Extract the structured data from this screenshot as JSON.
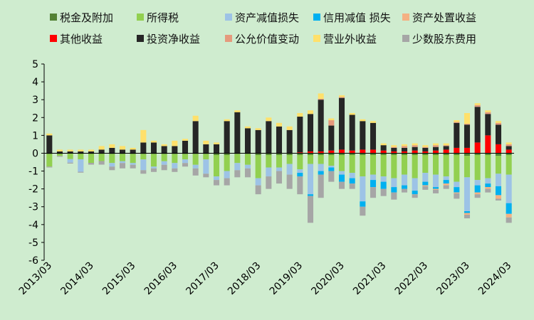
{
  "chart_data": {
    "type": "bar",
    "stacked": true,
    "ylim": [
      -6,
      5
    ],
    "yticks": [
      -6,
      -5,
      -4,
      -3,
      -2,
      -1,
      0,
      1,
      2,
      3,
      4,
      5
    ],
    "xtick_labels": [
      "2013/03",
      "2014/03",
      "2015/03",
      "2016/03",
      "2017/03",
      "2018/03",
      "2019/03",
      "2020/03",
      "2021/03",
      "2022/03",
      "2023/03",
      "2024/03"
    ],
    "xtick_positions": [
      0,
      4,
      8,
      12,
      16,
      20,
      24,
      28,
      32,
      36,
      40,
      44
    ],
    "grid": false,
    "legend_position": "top",
    "x_count": 45,
    "series": [
      {
        "name": "税金及附加",
        "color": "#548235",
        "values": [
          -0.05,
          -0.05,
          -0.03,
          -0.04,
          -0.04,
          -0.04,
          -0.05,
          -0.05,
          -0.05,
          -0.05,
          -0.05,
          -0.05,
          -0.05,
          -0.05,
          -0.05,
          -0.05,
          -0.1,
          -0.1,
          -0.05,
          -0.05,
          -0.1,
          -0.1,
          -0.1,
          -0.1,
          -0.1,
          -0.1,
          -0.1,
          -0.1,
          -0.1,
          -0.1,
          -0.1,
          -0.1,
          -0.1,
          -0.1,
          -0.1,
          -0.1,
          -0.1,
          -0.1,
          -0.1,
          -0.1,
          -0.15,
          -0.1,
          -0.1,
          -0.15,
          -0.1
        ]
      },
      {
        "name": "所得税",
        "color": "#92d050",
        "values": [
          -0.7,
          -0.1,
          -0.3,
          -0.3,
          -0.5,
          -0.4,
          -0.5,
          -0.4,
          -0.5,
          -0.3,
          -0.7,
          -0.4,
          -0.5,
          -0.3,
          -0.6,
          -0.3,
          -1.2,
          -0.9,
          -0.5,
          -0.6,
          -1.3,
          -0.7,
          -0.7,
          -0.5,
          -0.8,
          -0.5,
          -0.5,
          -0.6,
          -0.9,
          -1.0,
          -1.2,
          -1.1,
          -1.2,
          -1.3,
          -1.1,
          -1.3,
          -1.0,
          -1.1,
          -1.2,
          -1.5,
          -1.2,
          -1.4,
          -1.3,
          -1.0,
          -1.1
        ]
      },
      {
        "name": "资产减值损失",
        "color": "#9dc3e6",
        "values": [
          0,
          0,
          -0.2,
          -0.7,
          0,
          0,
          -0.2,
          -0.1,
          -0.1,
          -0.6,
          -0.1,
          -0.2,
          -0.3,
          -0.2,
          -0.2,
          -0.8,
          -0.2,
          -0.4,
          -0.4,
          -0.2,
          -0.4,
          -0.5,
          -0.2,
          -0.6,
          -0.2,
          -1.7,
          -0.4,
          -0.1,
          -0.2,
          -0.3,
          -1.4,
          -0.3,
          -0.3,
          -0.5,
          -0.6,
          -0.7,
          -0.5,
          -0.7,
          -0.2,
          -0.3,
          -1.9,
          -0.3,
          -0.3,
          -0.7,
          -1.6
        ]
      },
      {
        "name": "信用减值  损失",
        "color": "#00b0f0",
        "values": [
          0,
          0,
          0,
          0,
          0,
          0,
          0,
          0,
          0,
          0,
          0,
          0,
          0,
          0,
          0,
          0,
          0,
          0,
          0,
          0,
          0,
          0,
          0,
          0,
          -0.2,
          -0.1,
          -0.2,
          -0.2,
          -0.4,
          -0.3,
          -0.3,
          -0.4,
          -0.4,
          -0.3,
          -0.2,
          -0.2,
          -0.2,
          -0.1,
          -0.2,
          -0.3,
          -0.1,
          -0.4,
          -0.2,
          -0.5,
          -0.6
        ]
      },
      {
        "name": "资产处置收益",
        "color": "#f4b183",
        "values": [
          0,
          0,
          0,
          0,
          0,
          0,
          0,
          0,
          0,
          0,
          0,
          0,
          0,
          0,
          0,
          0,
          0,
          0,
          0,
          0,
          0,
          0,
          0,
          0,
          0,
          0,
          0,
          0,
          0,
          0,
          0,
          0,
          0,
          0,
          0,
          0,
          -0.05,
          -0.05,
          -0.1,
          -0.05,
          -0.1,
          -0.1,
          -0.1,
          -0.2,
          -0.2
        ]
      },
      {
        "name": "其他收益",
        "color": "#ff0000",
        "values": [
          0,
          0,
          0,
          0,
          0,
          0,
          0,
          0,
          0,
          0,
          0,
          0,
          0,
          0,
          0,
          0,
          0,
          0,
          0,
          0,
          0,
          0,
          0,
          0,
          0.05,
          0.1,
          0.1,
          0.15,
          0.2,
          0.15,
          0.2,
          0.2,
          0.15,
          0.1,
          0.1,
          0.15,
          0.1,
          0.15,
          0.2,
          0.3,
          0.3,
          0.6,
          1.0,
          0.5,
          0.2
        ]
      },
      {
        "name": "投资净收益",
        "color": "#262626",
        "values": [
          1.0,
          0.1,
          0.1,
          0.1,
          0.1,
          0.2,
          0.3,
          0.2,
          0.2,
          0.6,
          0.6,
          0.4,
          0.4,
          0.7,
          1.8,
          0.5,
          0.5,
          1.8,
          2.3,
          1.4,
          1.3,
          1.8,
          1.5,
          1.3,
          2.0,
          2.1,
          2.9,
          1.4,
          2.9,
          2.0,
          1.6,
          1.5,
          0.3,
          0.2,
          0.2,
          0.2,
          0.2,
          0.2,
          0.2,
          1.4,
          1.3,
          2.0,
          1.2,
          1.1,
          0.2
        ]
      },
      {
        "name": "公允价值变动",
        "color": "#e59a7d",
        "values": [
          0,
          0,
          0,
          0,
          0,
          0,
          0,
          0,
          0,
          0,
          0,
          0,
          0,
          0,
          0,
          0,
          0,
          0,
          0,
          0,
          0,
          0,
          0,
          0,
          0,
          0,
          0.05,
          0.3,
          0.05,
          0,
          0,
          0,
          0,
          0.05,
          0.1,
          0.1,
          0.05,
          0.1,
          0.05,
          0.05,
          0.05,
          0.1,
          0.1,
          0.1,
          0.1
        ]
      },
      {
        "name": "营业外收益",
        "color": "#ffe06b",
        "values": [
          0.1,
          0.1,
          0.1,
          0.1,
          0.1,
          0.2,
          0.2,
          0.2,
          0.1,
          0.7,
          0.1,
          0.1,
          0.3,
          0.1,
          0.3,
          0.2,
          0.1,
          0.1,
          0.1,
          0.1,
          0.1,
          0.2,
          0.2,
          0.2,
          0.2,
          0.2,
          0.3,
          0.1,
          0.1,
          0.1,
          0.1,
          0.1,
          0.1,
          0.1,
          0.1,
          0.1,
          0.1,
          0.1,
          0.1,
          0.1,
          0.6,
          0.1,
          0.1,
          0.1,
          0.1
        ]
      },
      {
        "name": "少数股东费用",
        "color": "#a6a6a6",
        "values": [
          -0.05,
          -0.05,
          -0.05,
          -0.05,
          -0.1,
          -0.2,
          -0.2,
          -0.3,
          -0.2,
          -0.2,
          -0.2,
          -0.3,
          -0.2,
          -0.2,
          -0.4,
          -0.2,
          -0.3,
          -0.4,
          -0.4,
          -0.5,
          -0.5,
          -0.7,
          -0.7,
          -0.8,
          -1.0,
          -1.5,
          -1.3,
          -0.6,
          -0.4,
          -0.3,
          -0.5,
          -0.6,
          -0.4,
          -0.4,
          -0.2,
          -0.2,
          -0.2,
          -0.2,
          -0.2,
          -0.3,
          -0.2,
          -0.2,
          -0.2,
          -0.1,
          -0.3
        ]
      }
    ],
    "legend_rows": [
      [
        0,
        1,
        2,
        3,
        4
      ],
      [
        5,
        6,
        7,
        8,
        9
      ]
    ]
  }
}
